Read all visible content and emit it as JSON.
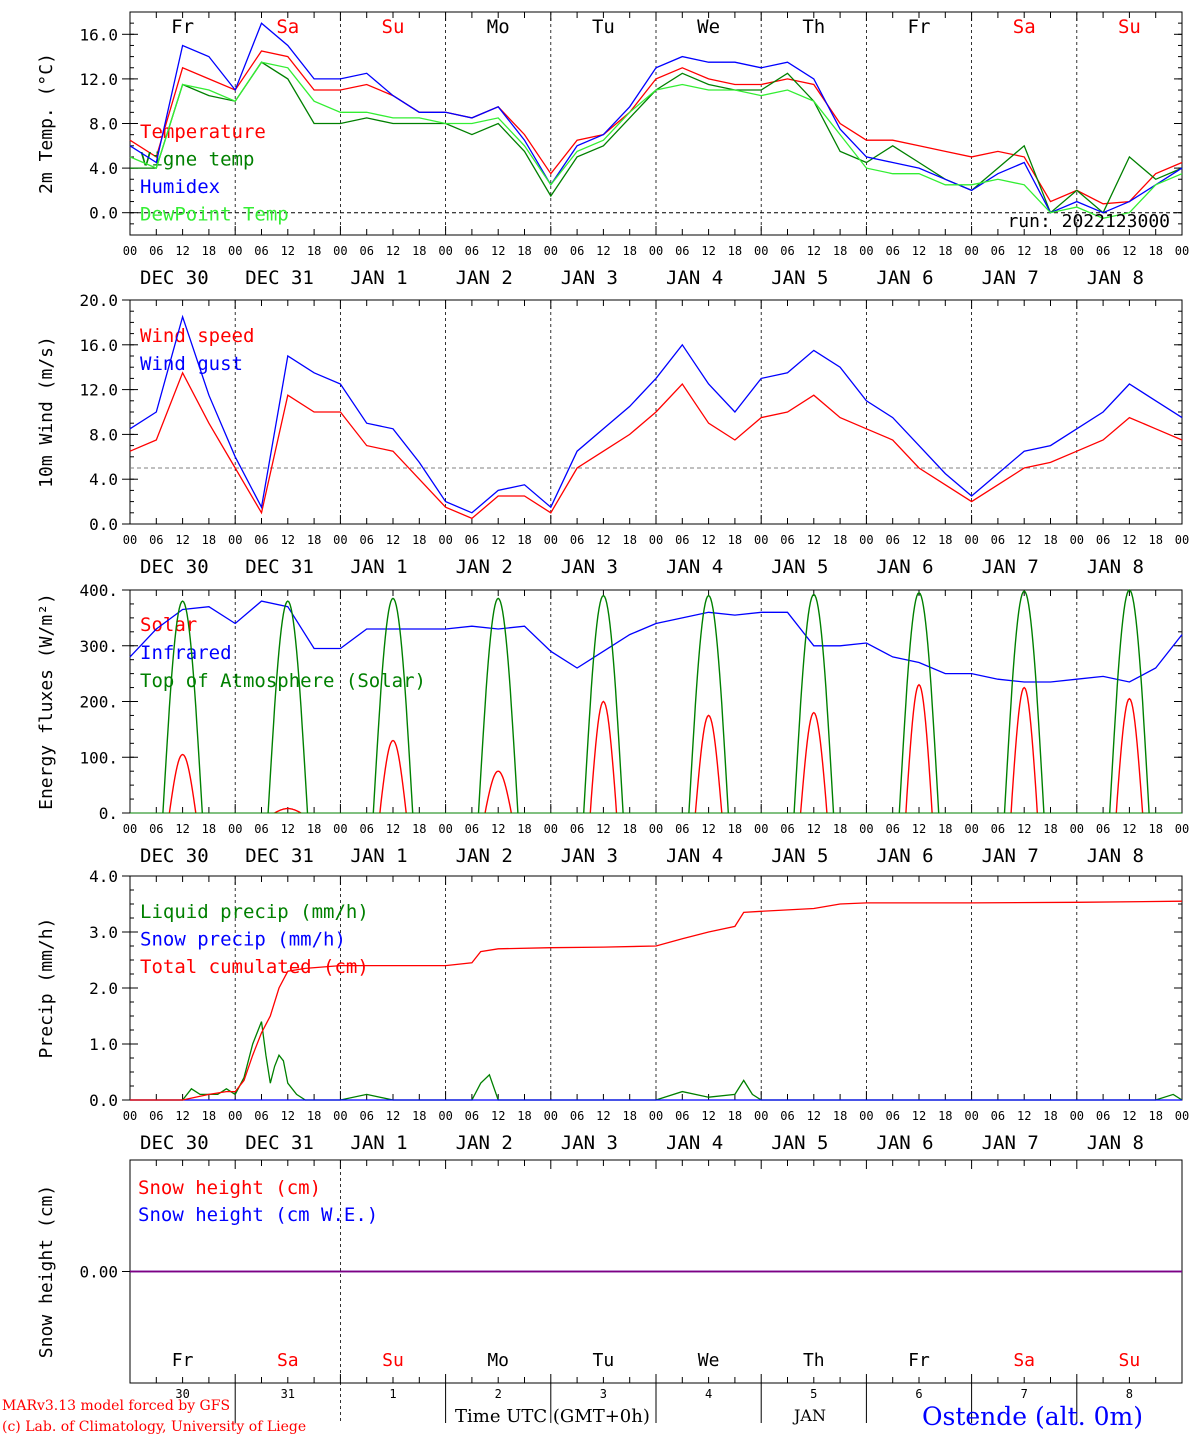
{
  "colors": {
    "red": "#ff0000",
    "blue": "#0000ff",
    "green": "#008000",
    "lightgreen": "#33ee33",
    "purple": "#800080",
    "grid": "#000000",
    "threshold": "#808080"
  },
  "day_names": [
    "Fr",
    "Sa",
    "Su",
    "Mo",
    "Tu",
    "We",
    "Th",
    "Fr",
    "Sa",
    "Su"
  ],
  "weekend_flags": [
    false,
    true,
    true,
    false,
    false,
    false,
    false,
    false,
    true,
    true
  ],
  "hour_ticks": [
    "00",
    "06",
    "12",
    "18"
  ],
  "final_hour_tick": "00",
  "date_labels": [
    "DEC 30",
    "DEC 31",
    "JAN  1",
    "JAN  2",
    "JAN  3",
    "JAN  4",
    "JAN  5",
    "JAN  6",
    "JAN  7",
    "JAN  8"
  ],
  "bottom_day_numbers": [
    "30",
    "31",
    "1",
    "2",
    "3",
    "4",
    "5",
    "6",
    "7",
    "8"
  ],
  "footer": {
    "credit_line1": "MARv3.13 model forced by GFS",
    "credit_line2": "(c) Lab. of Climatology, University of Liege",
    "xlabel": "Time UTC (GMT+0h)",
    "month": "JAN",
    "station": "Ostende (alt. 0m)"
  },
  "chart_data": [
    {
      "type": "line",
      "ylabel": "2m Temp. (°C)",
      "ylim": [
        -2,
        18
      ],
      "yticks": [
        0,
        4,
        8,
        12,
        16
      ],
      "ytick_labels": [
        "0.0",
        "4.0",
        "8.0",
        "12.0",
        "16.0"
      ],
      "x_unit": "hours since Dec 30 00 UTC",
      "reference_line": 0,
      "annotation": "run: 2022123000",
      "series": [
        {
          "name": "Temperature",
          "color": "#ff0000",
          "x": [
            0,
            6,
            12,
            18,
            24,
            30,
            36,
            42,
            48,
            54,
            60,
            66,
            72,
            78,
            84,
            90,
            96,
            102,
            108,
            114,
            120,
            126,
            132,
            138,
            144,
            150,
            156,
            162,
            168,
            174,
            180,
            186,
            192,
            198,
            204,
            210,
            216,
            222,
            228,
            234,
            240
          ],
          "y": [
            6.5,
            5,
            13,
            12,
            11,
            14.5,
            14,
            11,
            11,
            11.5,
            10.5,
            9,
            9,
            8.5,
            9.5,
            7,
            3.5,
            6.5,
            7,
            9,
            12,
            13,
            12,
            11.5,
            11.5,
            12,
            11.5,
            8,
            6.5,
            6.5,
            6,
            5.5,
            5,
            5.5,
            5,
            1,
            2,
            0.8,
            1,
            3.5,
            4.5
          ]
        },
        {
          "name": "Vigne temp",
          "color": "#008000",
          "x": [
            0,
            6,
            12,
            18,
            24,
            30,
            36,
            42,
            48,
            54,
            60,
            66,
            72,
            78,
            84,
            90,
            96,
            102,
            108,
            114,
            120,
            126,
            132,
            138,
            144,
            150,
            156,
            162,
            168,
            174,
            180,
            186,
            192,
            198,
            204,
            210,
            216,
            222,
            228,
            234,
            240
          ],
          "y": [
            4,
            4,
            11.5,
            10.5,
            10,
            13.5,
            12,
            8,
            8,
            8.5,
            8,
            8,
            8,
            7,
            8,
            5.5,
            1.5,
            5,
            6,
            8.5,
            11,
            12.5,
            11.5,
            11,
            11,
            12.5,
            10,
            5.5,
            4.5,
            6,
            4.5,
            3,
            2,
            4,
            6,
            0,
            2,
            0,
            5,
            3,
            4
          ]
        },
        {
          "name": "Humidex",
          "color": "#0000ff",
          "x": [
            0,
            6,
            12,
            18,
            24,
            30,
            36,
            42,
            48,
            54,
            60,
            66,
            72,
            78,
            84,
            90,
            96,
            102,
            108,
            114,
            120,
            126,
            132,
            138,
            144,
            150,
            156,
            162,
            168,
            174,
            180,
            186,
            192,
            198,
            204,
            210,
            216,
            222,
            228,
            234,
            240
          ],
          "y": [
            6,
            4.5,
            15,
            14,
            11,
            17,
            15,
            12,
            12,
            12.5,
            10.5,
            9,
            9,
            8.5,
            9.5,
            6.5,
            2.5,
            6,
            7,
            9.5,
            13,
            14,
            13.5,
            13.5,
            13,
            13.5,
            12,
            7.5,
            5,
            4.5,
            4,
            3,
            2,
            3.5,
            4.5,
            0,
            1,
            0,
            1,
            2.5,
            4
          ]
        },
        {
          "name": "DewPoint Temp",
          "color": "#33ee33",
          "x": [
            0,
            6,
            12,
            18,
            24,
            30,
            36,
            42,
            48,
            54,
            60,
            66,
            72,
            78,
            84,
            90,
            96,
            102,
            108,
            114,
            120,
            126,
            132,
            138,
            144,
            150,
            156,
            162,
            168,
            174,
            180,
            186,
            192,
            198,
            204,
            210,
            216,
            222,
            228,
            234,
            240
          ],
          "y": [
            5,
            4,
            11.5,
            11,
            10,
            13.5,
            13,
            10,
            9,
            9,
            8.5,
            8.5,
            8,
            8,
            8.5,
            6,
            2.5,
            5.5,
            6.5,
            9,
            11,
            11.5,
            11,
            11,
            10.5,
            11,
            10,
            7,
            4,
            3.5,
            3.5,
            2.5,
            2.5,
            3,
            2.5,
            0,
            0.5,
            -0.5,
            0,
            2.5,
            3.5
          ]
        }
      ]
    },
    {
      "type": "line",
      "ylabel": "10m Wind (m/s)",
      "ylim": [
        0,
        20
      ],
      "yticks": [
        0,
        4,
        8,
        12,
        16,
        20
      ],
      "ytick_labels": [
        "0.0",
        "4.0",
        "8.0",
        "12.0",
        "16.0",
        "20.0"
      ],
      "x_unit": "hours since Dec 30 00 UTC",
      "reference_line": 5,
      "series": [
        {
          "name": "Wind speed",
          "color": "#ff0000",
          "x": [
            0,
            6,
            12,
            18,
            24,
            30,
            36,
            42,
            48,
            54,
            60,
            66,
            72,
            78,
            84,
            90,
            96,
            102,
            108,
            114,
            120,
            126,
            132,
            138,
            144,
            150,
            156,
            162,
            168,
            174,
            180,
            186,
            192,
            198,
            204,
            210,
            216,
            222,
            228,
            234,
            240
          ],
          "y": [
            6.5,
            7.5,
            13.5,
            9,
            5,
            1,
            11.5,
            10,
            10,
            7,
            6.5,
            4,
            1.5,
            0.5,
            2.5,
            2.5,
            1,
            5,
            6.5,
            8,
            10,
            12.5,
            9,
            7.5,
            9.5,
            10,
            11.5,
            9.5,
            8.5,
            7.5,
            5,
            3.5,
            2,
            3.5,
            5,
            5.5,
            6.5,
            7.5,
            9.5,
            8.5,
            7.5
          ]
        },
        {
          "name": "Wind gust",
          "color": "#0000ff",
          "x": [
            0,
            6,
            12,
            18,
            24,
            30,
            36,
            42,
            48,
            54,
            60,
            66,
            72,
            78,
            84,
            90,
            96,
            102,
            108,
            114,
            120,
            126,
            132,
            138,
            144,
            150,
            156,
            162,
            168,
            174,
            180,
            186,
            192,
            198,
            204,
            210,
            216,
            222,
            228,
            234,
            240
          ],
          "y": [
            8.5,
            10,
            18.5,
            11.5,
            6,
            1.5,
            15,
            13.5,
            12.5,
            9,
            8.5,
            5.5,
            2,
            1,
            3,
            3.5,
            1.5,
            6.5,
            8.5,
            10.5,
            13,
            16,
            12.5,
            10,
            13,
            13.5,
            15.5,
            14,
            11,
            9.5,
            7,
            4.5,
            2.5,
            4.5,
            6.5,
            7,
            8.5,
            10,
            12.5,
            11,
            9.5
          ]
        }
      ]
    },
    {
      "type": "line",
      "ylabel": "Energy fluxes (W/m²)",
      "ylim": [
        0,
        400
      ],
      "yticks": [
        0,
        100,
        200,
        300,
        400
      ],
      "ytick_labels": [
        "0.",
        "100.",
        "200.",
        "300.",
        "400."
      ],
      "x_unit": "hours since Dec 30 00 UTC",
      "series": [
        {
          "name": "Solar",
          "color": "#ff0000",
          "kind": "daily_peaks",
          "peaks": [
            105,
            8,
            130,
            75,
            200,
            175,
            180,
            230,
            225,
            205
          ]
        },
        {
          "name": "Infrared",
          "color": "#0000ff",
          "x": [
            0,
            6,
            12,
            18,
            24,
            30,
            36,
            42,
            48,
            54,
            60,
            66,
            72,
            78,
            84,
            90,
            96,
            102,
            108,
            114,
            120,
            126,
            132,
            138,
            144,
            150,
            156,
            162,
            168,
            174,
            180,
            186,
            192,
            198,
            204,
            210,
            216,
            222,
            228,
            234,
            240
          ],
          "y": [
            280,
            330,
            365,
            370,
            340,
            380,
            370,
            295,
            295,
            330,
            330,
            330,
            330,
            335,
            330,
            335,
            290,
            260,
            290,
            320,
            340,
            350,
            360,
            355,
            360,
            360,
            300,
            300,
            305,
            280,
            270,
            250,
            250,
            240,
            235,
            235,
            240,
            245,
            235,
            260,
            320
          ]
        },
        {
          "name": "Top of Atmosphere (Solar)",
          "color": "#008000",
          "kind": "daily_peaks",
          "peaks": [
            380,
            380,
            385,
            385,
            390,
            390,
            392,
            395,
            398,
            400
          ]
        }
      ]
    },
    {
      "type": "line",
      "ylabel": "Precip (mm/h)",
      "ylim": [
        0,
        4
      ],
      "yticks": [
        0,
        1,
        2,
        3,
        4
      ],
      "ytick_labels": [
        "0.0",
        "1.0",
        "2.0",
        "3.0",
        "4.0"
      ],
      "x_unit": "hours since Dec 30 00 UTC",
      "series": [
        {
          "name": "Liquid precip (mm/h)",
          "color": "#008000",
          "x": [
            0,
            12,
            14,
            16,
            20,
            22,
            24,
            26,
            28,
            30,
            31,
            32,
            33,
            34,
            35,
            36,
            38,
            40,
            44,
            48,
            54,
            60,
            72,
            78,
            80,
            82,
            84,
            96,
            120,
            126,
            132,
            138,
            140,
            142,
            144,
            168,
            192,
            198,
            204,
            210,
            234,
            238,
            240
          ],
          "y": [
            0,
            0,
            0.2,
            0.1,
            0.1,
            0.2,
            0.1,
            0.4,
            1.0,
            1.4,
            0.8,
            0.3,
            0.6,
            0.8,
            0.7,
            0.3,
            0.1,
            0,
            0,
            0,
            0.1,
            0,
            0,
            0,
            0.3,
            0.45,
            0,
            0,
            0,
            0.15,
            0.05,
            0.1,
            0.35,
            0.1,
            0,
            0,
            0,
            0,
            0,
            0,
            0,
            0.1,
            0
          ]
        },
        {
          "name": "Snow precip (mm/h)",
          "color": "#0000ff",
          "x": [
            0,
            240
          ],
          "y": [
            0,
            0
          ]
        },
        {
          "name": "Total cumulated (cm)",
          "color": "#ff0000",
          "x": [
            0,
            12,
            18,
            22,
            24,
            26,
            28,
            30,
            32,
            34,
            36,
            40,
            48,
            60,
            72,
            78,
            80,
            84,
            96,
            108,
            120,
            126,
            132,
            138,
            140,
            144,
            156,
            162,
            168,
            192,
            216,
            240
          ],
          "y": [
            0,
            0,
            0.1,
            0.15,
            0.15,
            0.35,
            0.8,
            1.2,
            1.5,
            2.0,
            2.3,
            2.35,
            2.4,
            2.4,
            2.4,
            2.45,
            2.65,
            2.7,
            2.72,
            2.73,
            2.75,
            2.88,
            3.0,
            3.1,
            3.35,
            3.37,
            3.42,
            3.5,
            3.52,
            3.52,
            3.53,
            3.55
          ]
        }
      ]
    },
    {
      "type": "line",
      "ylabel": "Snow height (cm)",
      "ylim": [
        -1,
        1
      ],
      "yticks": [
        0
      ],
      "ytick_labels": [
        "0.00"
      ],
      "x_unit": "hours since Dec 30 00 UTC",
      "series": [
        {
          "name": "Snow height (cm)",
          "color": "#ff0000",
          "x": [
            0,
            240
          ],
          "y": [
            0,
            0
          ]
        },
        {
          "name": "Snow height (cm W.E.)",
          "color": "#0000ff",
          "x": [
            0,
            240
          ],
          "y": [
            0,
            0
          ]
        }
      ]
    }
  ]
}
